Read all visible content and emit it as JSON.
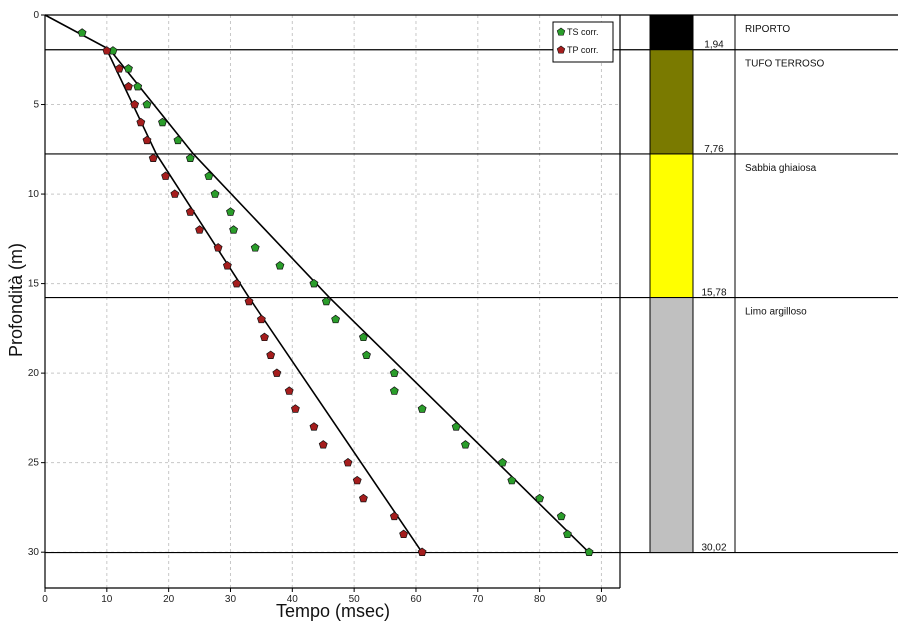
{
  "chart_data": {
    "type": "scatter",
    "xlabel": "Tempo (msec)",
    "ylabel": "Profondità (m)",
    "xlim": [
      0,
      93
    ],
    "ylim": [
      0,
      32
    ],
    "y_inverted": true,
    "xticks": [
      0,
      10,
      20,
      30,
      40,
      50,
      60,
      70,
      80,
      90
    ],
    "yticks": [
      0,
      5,
      10,
      15,
      20,
      25,
      30
    ],
    "grid": true,
    "legend_position": "top-right",
    "series": [
      {
        "name": "TS corr.",
        "color": "#2a9d2a",
        "marker": "pentagon",
        "points": [
          [
            6.0,
            1.0
          ],
          [
            11.0,
            2.0
          ],
          [
            13.5,
            3.0
          ],
          [
            15.0,
            4.0
          ],
          [
            16.5,
            5.0
          ],
          [
            19.0,
            6.0
          ],
          [
            21.5,
            7.0
          ],
          [
            23.5,
            8.0
          ],
          [
            26.5,
            9.0
          ],
          [
            27.5,
            10.0
          ],
          [
            30.0,
            11.0
          ],
          [
            30.5,
            12.0
          ],
          [
            34.0,
            13.0
          ],
          [
            38.0,
            14.0
          ],
          [
            43.5,
            15.0
          ],
          [
            45.5,
            16.0
          ],
          [
            47.0,
            17.0
          ],
          [
            51.5,
            18.0
          ],
          [
            52.0,
            19.0
          ],
          [
            56.5,
            20.0
          ],
          [
            56.5,
            21.0
          ],
          [
            61.0,
            22.0
          ],
          [
            66.5,
            23.0
          ],
          [
            68.0,
            24.0
          ],
          [
            74.0,
            25.0
          ],
          [
            75.5,
            26.0
          ],
          [
            80.0,
            27.0
          ],
          [
            83.5,
            28.0
          ],
          [
            84.5,
            29.0
          ],
          [
            88.0,
            30.0
          ]
        ],
        "fit_line": [
          [
            0,
            0
          ],
          [
            10.5,
            1.94
          ],
          [
            24.0,
            7.76
          ],
          [
            46.0,
            15.78
          ],
          [
            88.0,
            30.02
          ]
        ]
      },
      {
        "name": "TP corr.",
        "color": "#a51d1d",
        "marker": "pentagon",
        "points": [
          [
            10.0,
            2.0
          ],
          [
            12.0,
            3.0
          ],
          [
            13.5,
            4.0
          ],
          [
            14.5,
            5.0
          ],
          [
            15.5,
            6.0
          ],
          [
            16.5,
            7.0
          ],
          [
            17.5,
            8.0
          ],
          [
            19.5,
            9.0
          ],
          [
            21.0,
            10.0
          ],
          [
            23.5,
            11.0
          ],
          [
            25.0,
            12.0
          ],
          [
            28.0,
            13.0
          ],
          [
            29.5,
            14.0
          ],
          [
            31.0,
            15.0
          ],
          [
            33.0,
            16.0
          ],
          [
            35.0,
            17.0
          ],
          [
            35.5,
            18.0
          ],
          [
            36.5,
            19.0
          ],
          [
            37.5,
            20.0
          ],
          [
            39.5,
            21.0
          ],
          [
            40.5,
            22.0
          ],
          [
            43.5,
            23.0
          ],
          [
            45.0,
            24.0
          ],
          [
            49.0,
            25.0
          ],
          [
            50.5,
            26.0
          ],
          [
            51.5,
            27.0
          ],
          [
            56.5,
            28.0
          ],
          [
            58.0,
            29.0
          ],
          [
            61.0,
            30.0
          ]
        ],
        "fit_line": [
          [
            10.0,
            1.94
          ],
          [
            18.0,
            7.76
          ],
          [
            33.0,
            15.78
          ],
          [
            61.0,
            30.02
          ]
        ]
      }
    ],
    "horizontal_lines": [
      1.94,
      7.76,
      15.78,
      30.02
    ]
  },
  "stratigraphy": {
    "layers": [
      {
        "top": 0.0,
        "bottom": 1.94,
        "label": "RIPORTO",
        "depth_label": "1,94",
        "color": "#000000"
      },
      {
        "top": 1.94,
        "bottom": 7.76,
        "label": "TUFO TERROSO",
        "depth_label": "7,76",
        "color": "#7a7a00"
      },
      {
        "top": 7.76,
        "bottom": 15.78,
        "label": "Sabbia ghiaiosa",
        "depth_label": "15,78",
        "color": "#ffff00"
      },
      {
        "top": 15.78,
        "bottom": 30.02,
        "label": "Limo argilloso",
        "depth_label": "30,02",
        "color": "#c0c0c0"
      }
    ]
  }
}
